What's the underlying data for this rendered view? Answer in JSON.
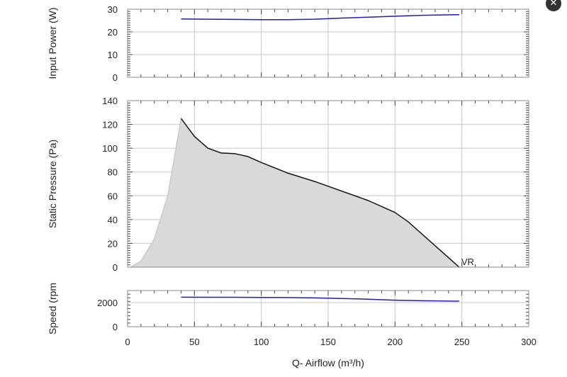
{
  "close_button": {
    "icon": "close-icon",
    "glyph": "✕"
  },
  "colors": {
    "series_line": "#1f1fb0",
    "pressure_line": "#111111",
    "fill": "#d9d9d9",
    "grid": "#c8c8c8",
    "frame": "#888888"
  },
  "chart_data": [
    {
      "id": "power",
      "type": "line",
      "ylabel": "Input Power (W)",
      "xlim": [
        0,
        300
      ],
      "ylim": [
        0,
        30
      ],
      "yticks": [
        0,
        10,
        20,
        30
      ],
      "grid": true,
      "series": [
        {
          "x": [
            40,
            60,
            80,
            100,
            120,
            140,
            160,
            180,
            200,
            220,
            248
          ],
          "y": [
            25.7,
            25.6,
            25.5,
            25.4,
            25.4,
            25.6,
            26.1,
            26.5,
            26.9,
            27.3,
            27.6
          ]
        }
      ]
    },
    {
      "id": "pressure",
      "type": "area",
      "ylabel": "Static Pressure (Pa)",
      "xlim": [
        0,
        300
      ],
      "ylim": [
        0,
        140
      ],
      "yticks": [
        0,
        20,
        40,
        60,
        80,
        100,
        120,
        140
      ],
      "grid": true,
      "envelope_left": {
        "x": [
          2,
          10,
          20,
          30,
          40
        ],
        "y": [
          0,
          5,
          24,
          60,
          125
        ]
      },
      "series": [
        {
          "x": [
            40,
            50,
            60,
            70,
            80,
            90,
            100,
            120,
            140,
            160,
            180,
            200,
            210,
            220,
            235,
            248
          ],
          "y": [
            125,
            110,
            100,
            96,
            95.5,
            93,
            88,
            79,
            72,
            64,
            56,
            46,
            38,
            28,
            13,
            0
          ]
        }
      ],
      "annotations": [
        {
          "text": "VR",
          "x": 248,
          "y": 0
        }
      ]
    },
    {
      "id": "speed",
      "type": "line",
      "ylabel": "Speed (rpm",
      "xlabel": "Q- Airflow (m³/h)",
      "xlim": [
        0,
        300
      ],
      "ylim": [
        0,
        3000
      ],
      "yticks": [
        0,
        2000
      ],
      "xticks": [
        0,
        50,
        100,
        150,
        200,
        250,
        300
      ],
      "grid": true,
      "series": [
        {
          "x": [
            40,
            60,
            80,
            100,
            120,
            140,
            160,
            180,
            200,
            220,
            248
          ],
          "y": [
            2450,
            2440,
            2440,
            2430,
            2420,
            2390,
            2340,
            2280,
            2200,
            2150,
            2120
          ]
        }
      ]
    }
  ]
}
